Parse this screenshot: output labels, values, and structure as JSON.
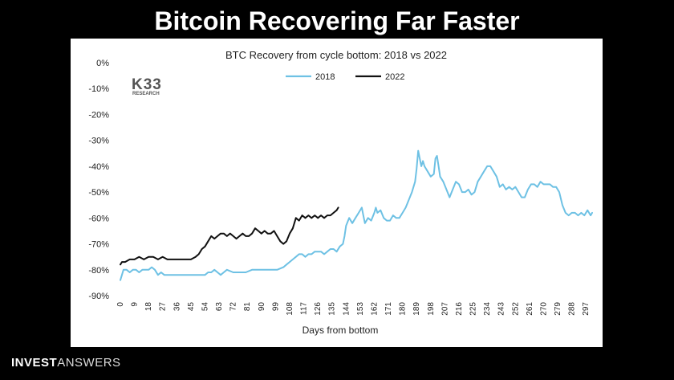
{
  "slide": {
    "title": "Bitcoin Recovering Far Faster",
    "brand_bold": "INVEST",
    "brand_light": "ANSWERS"
  },
  "logo": {
    "main": "K33",
    "sub": "RESEARCH"
  },
  "colors": {
    "s2018": "#6ec1e4",
    "s2022": "#111111",
    "background": "#000000",
    "panel": "#ffffff"
  },
  "chart_data": {
    "type": "line",
    "title": "BTC Recovery from cycle bottom: 2018 vs 2022",
    "xlabel": "Days from bottom",
    "ylabel": "",
    "xlim": [
      0,
      302
    ],
    "ylim": [
      -90,
      0
    ],
    "x_ticks": [
      0,
      9,
      18,
      27,
      36,
      45,
      54,
      63,
      72,
      81,
      90,
      99,
      108,
      117,
      126,
      135,
      144,
      153,
      162,
      171,
      180,
      189,
      198,
      207,
      216,
      225,
      234,
      243,
      252,
      261,
      270,
      279,
      288,
      297
    ],
    "y_ticks": [
      0,
      -10,
      -20,
      -30,
      -40,
      -50,
      -60,
      -70,
      -80,
      -90
    ],
    "y_tick_labels": [
      "0%",
      "-10%",
      "-20%",
      "-30%",
      "-40%",
      "-50%",
      "-60%",
      "-70%",
      "-80%",
      "-90%"
    ],
    "legend_position": "top-center",
    "grid": false,
    "series": [
      {
        "name": "2018",
        "color_key": "s2018",
        "points": [
          [
            0,
            -84
          ],
          [
            2,
            -80
          ],
          [
            4,
            -80
          ],
          [
            6,
            -81
          ],
          [
            8,
            -80
          ],
          [
            10,
            -80
          ],
          [
            12,
            -81
          ],
          [
            14,
            -80
          ],
          [
            16,
            -80
          ],
          [
            18,
            -80
          ],
          [
            20,
            -79
          ],
          [
            22,
            -80
          ],
          [
            24,
            -82
          ],
          [
            26,
            -81
          ],
          [
            28,
            -82
          ],
          [
            30,
            -82
          ],
          [
            34,
            -82
          ],
          [
            38,
            -82
          ],
          [
            42,
            -82
          ],
          [
            46,
            -82
          ],
          [
            50,
            -82
          ],
          [
            54,
            -82
          ],
          [
            56,
            -81
          ],
          [
            58,
            -81
          ],
          [
            60,
            -80
          ],
          [
            62,
            -81
          ],
          [
            64,
            -82
          ],
          [
            66,
            -81
          ],
          [
            68,
            -80
          ],
          [
            72,
            -81
          ],
          [
            76,
            -81
          ],
          [
            80,
            -81
          ],
          [
            84,
            -80
          ],
          [
            88,
            -80
          ],
          [
            92,
            -80
          ],
          [
            96,
            -80
          ],
          [
            100,
            -80
          ],
          [
            104,
            -79
          ],
          [
            106,
            -78
          ],
          [
            108,
            -77
          ],
          [
            110,
            -76
          ],
          [
            112,
            -75
          ],
          [
            114,
            -74
          ],
          [
            116,
            -74
          ],
          [
            118,
            -75
          ],
          [
            120,
            -74
          ],
          [
            122,
            -74
          ],
          [
            124,
            -73
          ],
          [
            126,
            -73
          ],
          [
            128,
            -73
          ],
          [
            130,
            -74
          ],
          [
            132,
            -73
          ],
          [
            134,
            -72
          ],
          [
            136,
            -72
          ],
          [
            138,
            -73
          ],
          [
            140,
            -71
          ],
          [
            142,
            -70
          ],
          [
            143,
            -67
          ],
          [
            144,
            -63
          ],
          [
            146,
            -60
          ],
          [
            148,
            -62
          ],
          [
            150,
            -60
          ],
          [
            152,
            -58
          ],
          [
            154,
            -56
          ],
          [
            155,
            -59
          ],
          [
            156,
            -62
          ],
          [
            158,
            -60
          ],
          [
            160,
            -61
          ],
          [
            162,
            -58
          ],
          [
            163,
            -56
          ],
          [
            164,
            -58
          ],
          [
            166,
            -57
          ],
          [
            168,
            -60
          ],
          [
            170,
            -61
          ],
          [
            172,
            -61
          ],
          [
            174,
            -59
          ],
          [
            176,
            -60
          ],
          [
            178,
            -60
          ],
          [
            180,
            -58
          ],
          [
            182,
            -56
          ],
          [
            184,
            -53
          ],
          [
            186,
            -50
          ],
          [
            188,
            -46
          ],
          [
            189,
            -41
          ],
          [
            190,
            -34
          ],
          [
            191,
            -37
          ],
          [
            192,
            -40
          ],
          [
            193,
            -38
          ],
          [
            194,
            -40
          ],
          [
            196,
            -42
          ],
          [
            198,
            -44
          ],
          [
            200,
            -43
          ],
          [
            201,
            -37
          ],
          [
            202,
            -36
          ],
          [
            203,
            -40
          ],
          [
            204,
            -44
          ],
          [
            206,
            -46
          ],
          [
            208,
            -49
          ],
          [
            210,
            -52
          ],
          [
            212,
            -49
          ],
          [
            214,
            -46
          ],
          [
            216,
            -47
          ],
          [
            218,
            -50
          ],
          [
            220,
            -50
          ],
          [
            222,
            -49
          ],
          [
            224,
            -51
          ],
          [
            226,
            -50
          ],
          [
            228,
            -46
          ],
          [
            230,
            -44
          ],
          [
            232,
            -42
          ],
          [
            234,
            -40
          ],
          [
            236,
            -40
          ],
          [
            238,
            -42
          ],
          [
            240,
            -44
          ],
          [
            242,
            -48
          ],
          [
            244,
            -47
          ],
          [
            246,
            -49
          ],
          [
            248,
            -48
          ],
          [
            250,
            -49
          ],
          [
            252,
            -48
          ],
          [
            254,
            -50
          ],
          [
            256,
            -52
          ],
          [
            258,
            -52
          ],
          [
            260,
            -49
          ],
          [
            262,
            -47
          ],
          [
            264,
            -47
          ],
          [
            266,
            -48
          ],
          [
            268,
            -46
          ],
          [
            270,
            -47
          ],
          [
            272,
            -47
          ],
          [
            274,
            -47
          ],
          [
            276,
            -48
          ],
          [
            278,
            -48
          ],
          [
            280,
            -50
          ],
          [
            282,
            -55
          ],
          [
            284,
            -58
          ],
          [
            286,
            -59
          ],
          [
            288,
            -58
          ],
          [
            290,
            -58
          ],
          [
            292,
            -59
          ],
          [
            294,
            -58
          ],
          [
            296,
            -59
          ],
          [
            298,
            -57
          ],
          [
            300,
            -59
          ],
          [
            301,
            -58
          ]
        ]
      },
      {
        "name": "2022",
        "color_key": "s2022",
        "points": [
          [
            0,
            -78
          ],
          [
            1,
            -77
          ],
          [
            3,
            -77
          ],
          [
            6,
            -76
          ],
          [
            9,
            -76
          ],
          [
            12,
            -75
          ],
          [
            15,
            -76
          ],
          [
            18,
            -75
          ],
          [
            21,
            -75
          ],
          [
            24,
            -76
          ],
          [
            27,
            -75
          ],
          [
            30,
            -76
          ],
          [
            33,
            -76
          ],
          [
            36,
            -76
          ],
          [
            39,
            -76
          ],
          [
            42,
            -76
          ],
          [
            45,
            -76
          ],
          [
            48,
            -75
          ],
          [
            50,
            -74
          ],
          [
            52,
            -72
          ],
          [
            54,
            -71
          ],
          [
            56,
            -69
          ],
          [
            58,
            -67
          ],
          [
            60,
            -68
          ],
          [
            62,
            -67
          ],
          [
            64,
            -66
          ],
          [
            66,
            -66
          ],
          [
            68,
            -67
          ],
          [
            70,
            -66
          ],
          [
            72,
            -67
          ],
          [
            74,
            -68
          ],
          [
            76,
            -67
          ],
          [
            78,
            -66
          ],
          [
            80,
            -67
          ],
          [
            82,
            -67
          ],
          [
            84,
            -66
          ],
          [
            86,
            -64
          ],
          [
            88,
            -65
          ],
          [
            90,
            -66
          ],
          [
            92,
            -65
          ],
          [
            94,
            -66
          ],
          [
            96,
            -66
          ],
          [
            98,
            -65
          ],
          [
            100,
            -67
          ],
          [
            102,
            -69
          ],
          [
            104,
            -70
          ],
          [
            106,
            -69
          ],
          [
            108,
            -66
          ],
          [
            110,
            -64
          ],
          [
            112,
            -60
          ],
          [
            114,
            -61
          ],
          [
            116,
            -59
          ],
          [
            118,
            -60
          ],
          [
            120,
            -59
          ],
          [
            122,
            -60
          ],
          [
            124,
            -59
          ],
          [
            126,
            -60
          ],
          [
            128,
            -59
          ],
          [
            130,
            -60
          ],
          [
            132,
            -59
          ],
          [
            134,
            -59
          ],
          [
            136,
            -58
          ],
          [
            138,
            -57
          ],
          [
            139,
            -56
          ]
        ]
      }
    ]
  }
}
